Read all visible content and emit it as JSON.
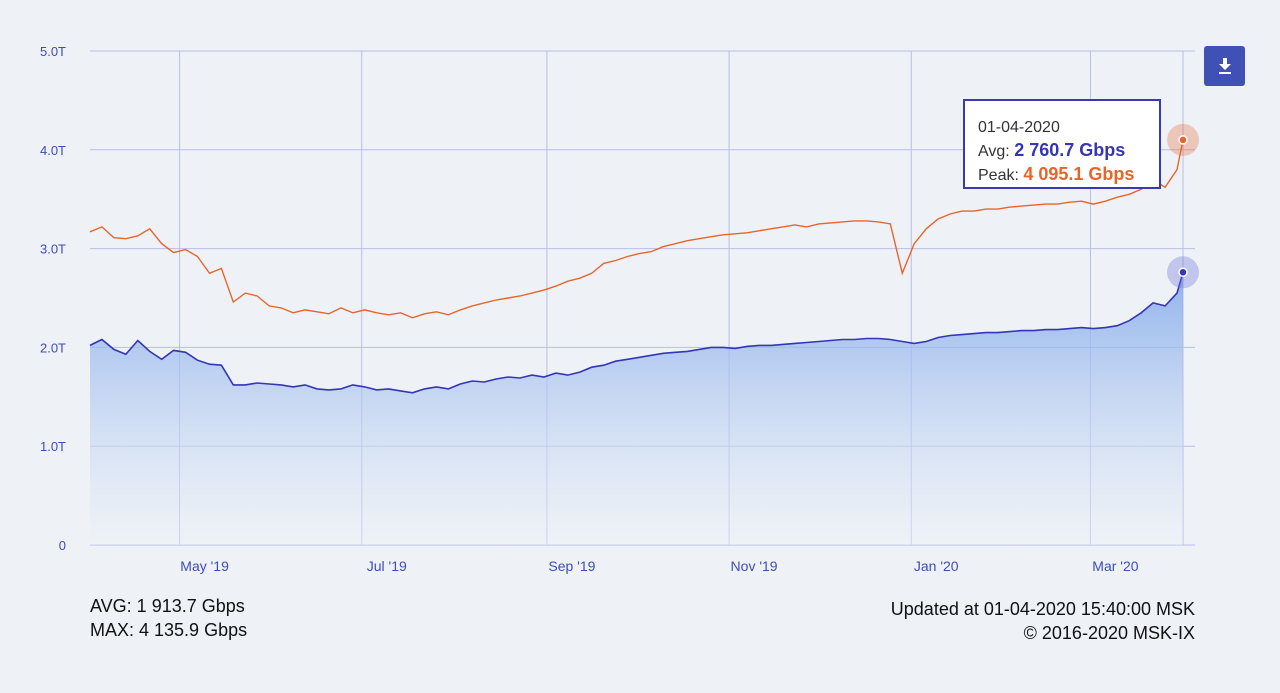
{
  "tooltip": {
    "date": "01-04-2020",
    "avg_label": "Avg:",
    "avg_value": "2 760.7 Gbps",
    "peak_label": "Peak:",
    "peak_value": "4 095.1 Gbps"
  },
  "stats": {
    "avg": "AVG: 1 913.7 Gbps",
    "max": "MAX: 4 135.9 Gbps"
  },
  "footer": {
    "updated": "Updated at 01-04-2020 15:40:00 MSK",
    "copyright": "© 2016-2020 MSK-IX"
  },
  "download_icon": "download-icon",
  "colors": {
    "avg_line": "#3535b5",
    "peak_line": "#e8652a",
    "grid": "#b7bde8",
    "axis_text": "#3f4bb8",
    "button": "#3f51b5"
  },
  "chart_data": {
    "type": "area",
    "x_start": "2019-04-01",
    "x_end": "2020-04-01",
    "ylim": [
      0,
      5.0
    ],
    "yticks": [
      {
        "value": 0,
        "label": "0"
      },
      {
        "value": 1.0,
        "label": "1.0T"
      },
      {
        "value": 2.0,
        "label": "2.0T"
      },
      {
        "value": 3.0,
        "label": "3.0T"
      },
      {
        "value": 4.0,
        "label": "4.0T"
      },
      {
        "value": 5.0,
        "label": "5.0T"
      }
    ],
    "xticks": [
      {
        "date": "2019-05-01",
        "label": "May '19"
      },
      {
        "date": "2019-07-01",
        "label": "Jul '19"
      },
      {
        "date": "2019-09-01",
        "label": "Sep '19"
      },
      {
        "date": "2019-11-01",
        "label": "Nov '19"
      },
      {
        "date": "2020-01-01",
        "label": "Jan '20"
      },
      {
        "date": "2020-03-01",
        "label": "Mar '20"
      }
    ],
    "grid": true,
    "series": [
      {
        "name": "Avg",
        "type": "area",
        "values": [
          [
            "2019-04-01",
            2.02
          ],
          [
            "2019-04-05",
            2.08
          ],
          [
            "2019-04-09",
            1.98
          ],
          [
            "2019-04-13",
            1.93
          ],
          [
            "2019-04-17",
            2.07
          ],
          [
            "2019-04-21",
            1.96
          ],
          [
            "2019-04-25",
            1.88
          ],
          [
            "2019-04-29",
            1.97
          ],
          [
            "2019-05-03",
            1.95
          ],
          [
            "2019-05-07",
            1.87
          ],
          [
            "2019-05-11",
            1.83
          ],
          [
            "2019-05-15",
            1.82
          ],
          [
            "2019-05-19",
            1.62
          ],
          [
            "2019-05-23",
            1.62
          ],
          [
            "2019-05-27",
            1.64
          ],
          [
            "2019-05-31",
            1.63
          ],
          [
            "2019-06-04",
            1.62
          ],
          [
            "2019-06-08",
            1.6
          ],
          [
            "2019-06-12",
            1.62
          ],
          [
            "2019-06-16",
            1.58
          ],
          [
            "2019-06-20",
            1.57
          ],
          [
            "2019-06-24",
            1.58
          ],
          [
            "2019-06-28",
            1.62
          ],
          [
            "2019-07-02",
            1.6
          ],
          [
            "2019-07-06",
            1.57
          ],
          [
            "2019-07-10",
            1.58
          ],
          [
            "2019-07-14",
            1.56
          ],
          [
            "2019-07-18",
            1.54
          ],
          [
            "2019-07-22",
            1.58
          ],
          [
            "2019-07-26",
            1.6
          ],
          [
            "2019-07-30",
            1.58
          ],
          [
            "2019-08-03",
            1.63
          ],
          [
            "2019-08-07",
            1.66
          ],
          [
            "2019-08-11",
            1.65
          ],
          [
            "2019-08-15",
            1.68
          ],
          [
            "2019-08-19",
            1.7
          ],
          [
            "2019-08-23",
            1.69
          ],
          [
            "2019-08-27",
            1.72
          ],
          [
            "2019-08-31",
            1.7
          ],
          [
            "2019-09-04",
            1.74
          ],
          [
            "2019-09-08",
            1.72
          ],
          [
            "2019-09-12",
            1.75
          ],
          [
            "2019-09-16",
            1.8
          ],
          [
            "2019-09-20",
            1.82
          ],
          [
            "2019-09-24",
            1.86
          ],
          [
            "2019-09-28",
            1.88
          ],
          [
            "2019-10-02",
            1.9
          ],
          [
            "2019-10-06",
            1.92
          ],
          [
            "2019-10-10",
            1.94
          ],
          [
            "2019-10-14",
            1.95
          ],
          [
            "2019-10-18",
            1.96
          ],
          [
            "2019-10-22",
            1.98
          ],
          [
            "2019-10-26",
            2.0
          ],
          [
            "2019-10-30",
            2.0
          ],
          [
            "2019-11-03",
            1.99
          ],
          [
            "2019-11-07",
            2.01
          ],
          [
            "2019-11-11",
            2.02
          ],
          [
            "2019-11-15",
            2.02
          ],
          [
            "2019-11-19",
            2.03
          ],
          [
            "2019-11-23",
            2.04
          ],
          [
            "2019-11-27",
            2.05
          ],
          [
            "2019-12-01",
            2.06
          ],
          [
            "2019-12-05",
            2.07
          ],
          [
            "2019-12-09",
            2.08
          ],
          [
            "2019-12-13",
            2.08
          ],
          [
            "2019-12-17",
            2.09
          ],
          [
            "2019-12-21",
            2.09
          ],
          [
            "2019-12-25",
            2.08
          ],
          [
            "2019-12-29",
            2.06
          ],
          [
            "2020-01-02",
            2.04
          ],
          [
            "2020-01-06",
            2.06
          ],
          [
            "2020-01-10",
            2.1
          ],
          [
            "2020-01-14",
            2.12
          ],
          [
            "2020-01-18",
            2.13
          ],
          [
            "2020-01-22",
            2.14
          ],
          [
            "2020-01-26",
            2.15
          ],
          [
            "2020-01-30",
            2.15
          ],
          [
            "2020-02-03",
            2.16
          ],
          [
            "2020-02-07",
            2.17
          ],
          [
            "2020-02-11",
            2.17
          ],
          [
            "2020-02-15",
            2.18
          ],
          [
            "2020-02-19",
            2.18
          ],
          [
            "2020-02-23",
            2.19
          ],
          [
            "2020-02-27",
            2.2
          ],
          [
            "2020-03-02",
            2.19
          ],
          [
            "2020-03-06",
            2.2
          ],
          [
            "2020-03-10",
            2.22
          ],
          [
            "2020-03-14",
            2.27
          ],
          [
            "2020-03-18",
            2.35
          ],
          [
            "2020-03-22",
            2.45
          ],
          [
            "2020-03-26",
            2.42
          ],
          [
            "2020-03-30",
            2.55
          ],
          [
            "2020-04-01",
            2.76
          ]
        ]
      },
      {
        "name": "Peak",
        "type": "line",
        "values": [
          [
            "2019-04-01",
            3.17
          ],
          [
            "2019-04-05",
            3.22
          ],
          [
            "2019-04-09",
            3.11
          ],
          [
            "2019-04-13",
            3.1
          ],
          [
            "2019-04-17",
            3.13
          ],
          [
            "2019-04-21",
            3.2
          ],
          [
            "2019-04-25",
            3.05
          ],
          [
            "2019-04-29",
            2.96
          ],
          [
            "2019-05-03",
            2.99
          ],
          [
            "2019-05-07",
            2.92
          ],
          [
            "2019-05-11",
            2.75
          ],
          [
            "2019-05-15",
            2.8
          ],
          [
            "2019-05-19",
            2.46
          ],
          [
            "2019-05-23",
            2.55
          ],
          [
            "2019-05-27",
            2.52
          ],
          [
            "2019-05-31",
            2.42
          ],
          [
            "2019-06-04",
            2.4
          ],
          [
            "2019-06-08",
            2.35
          ],
          [
            "2019-06-12",
            2.38
          ],
          [
            "2019-06-16",
            2.36
          ],
          [
            "2019-06-20",
            2.34
          ],
          [
            "2019-06-24",
            2.4
          ],
          [
            "2019-06-28",
            2.35
          ],
          [
            "2019-07-02",
            2.38
          ],
          [
            "2019-07-06",
            2.35
          ],
          [
            "2019-07-10",
            2.33
          ],
          [
            "2019-07-14",
            2.35
          ],
          [
            "2019-07-18",
            2.3
          ],
          [
            "2019-07-22",
            2.34
          ],
          [
            "2019-07-26",
            2.36
          ],
          [
            "2019-07-30",
            2.33
          ],
          [
            "2019-08-03",
            2.38
          ],
          [
            "2019-08-07",
            2.42
          ],
          [
            "2019-08-11",
            2.45
          ],
          [
            "2019-08-15",
            2.48
          ],
          [
            "2019-08-19",
            2.5
          ],
          [
            "2019-08-23",
            2.52
          ],
          [
            "2019-08-27",
            2.55
          ],
          [
            "2019-08-31",
            2.58
          ],
          [
            "2019-09-04",
            2.62
          ],
          [
            "2019-09-08",
            2.67
          ],
          [
            "2019-09-12",
            2.7
          ],
          [
            "2019-09-16",
            2.75
          ],
          [
            "2019-09-20",
            2.85
          ],
          [
            "2019-09-24",
            2.88
          ],
          [
            "2019-09-28",
            2.92
          ],
          [
            "2019-10-02",
            2.95
          ],
          [
            "2019-10-06",
            2.97
          ],
          [
            "2019-10-10",
            3.02
          ],
          [
            "2019-10-14",
            3.05
          ],
          [
            "2019-10-18",
            3.08
          ],
          [
            "2019-10-22",
            3.1
          ],
          [
            "2019-10-26",
            3.12
          ],
          [
            "2019-10-30",
            3.14
          ],
          [
            "2019-11-03",
            3.15
          ],
          [
            "2019-11-07",
            3.16
          ],
          [
            "2019-11-11",
            3.18
          ],
          [
            "2019-11-15",
            3.2
          ],
          [
            "2019-11-19",
            3.22
          ],
          [
            "2019-11-23",
            3.24
          ],
          [
            "2019-11-27",
            3.22
          ],
          [
            "2019-12-01",
            3.25
          ],
          [
            "2019-12-05",
            3.26
          ],
          [
            "2019-12-09",
            3.27
          ],
          [
            "2019-12-13",
            3.28
          ],
          [
            "2019-12-17",
            3.28
          ],
          [
            "2019-12-21",
            3.27
          ],
          [
            "2019-12-25",
            3.25
          ],
          [
            "2019-12-29",
            2.75
          ],
          [
            "2020-01-02",
            3.05
          ],
          [
            "2020-01-06",
            3.2
          ],
          [
            "2020-01-10",
            3.3
          ],
          [
            "2020-01-14",
            3.35
          ],
          [
            "2020-01-18",
            3.38
          ],
          [
            "2020-01-22",
            3.38
          ],
          [
            "2020-01-26",
            3.4
          ],
          [
            "2020-01-30",
            3.4
          ],
          [
            "2020-02-03",
            3.42
          ],
          [
            "2020-02-07",
            3.43
          ],
          [
            "2020-02-11",
            3.44
          ],
          [
            "2020-02-15",
            3.45
          ],
          [
            "2020-02-19",
            3.45
          ],
          [
            "2020-02-23",
            3.47
          ],
          [
            "2020-02-27",
            3.48
          ],
          [
            "2020-03-02",
            3.45
          ],
          [
            "2020-03-06",
            3.48
          ],
          [
            "2020-03-10",
            3.52
          ],
          [
            "2020-03-14",
            3.55
          ],
          [
            "2020-03-18",
            3.6
          ],
          [
            "2020-03-22",
            3.7
          ],
          [
            "2020-03-26",
            3.62
          ],
          [
            "2020-03-30",
            3.8
          ],
          [
            "2020-04-01",
            4.1
          ]
        ]
      }
    ],
    "highlight": {
      "date": "2020-04-01",
      "avg": 2.76,
      "peak": 4.1
    }
  }
}
